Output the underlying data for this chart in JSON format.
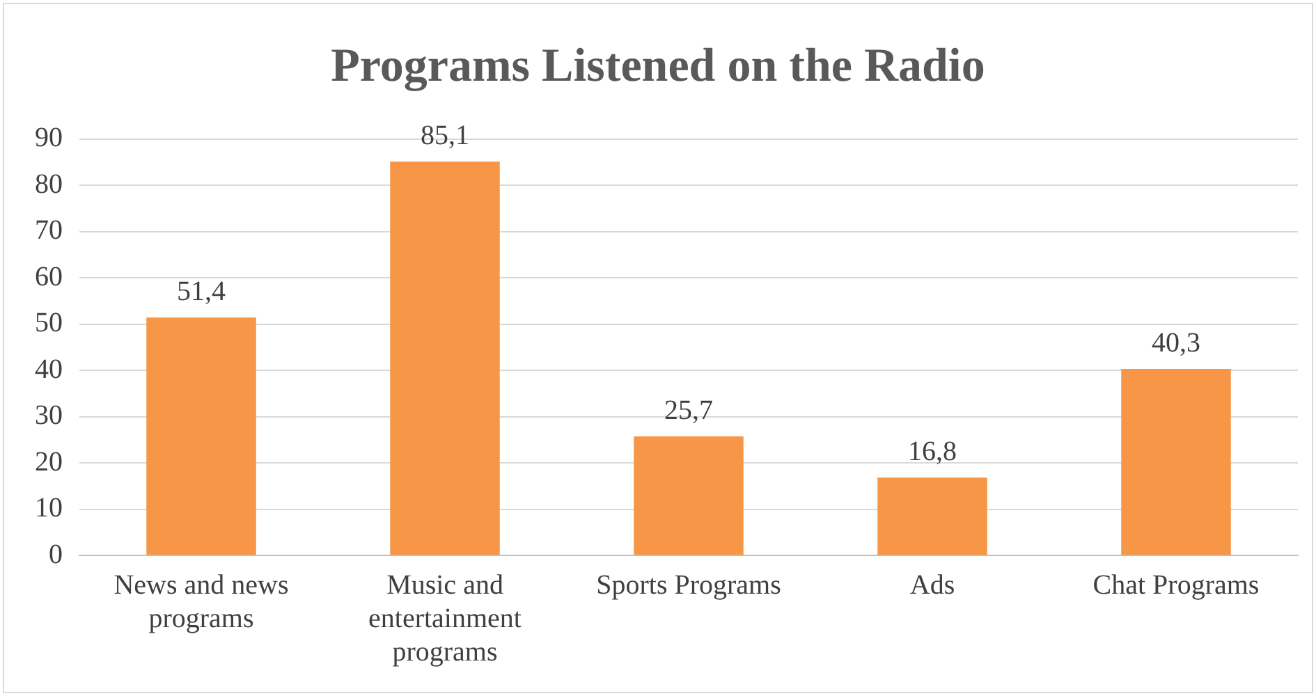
{
  "chart_data": {
    "type": "bar",
    "title": "Programs Listened on the Radio",
    "categories": [
      "News and news programs",
      "Music and entertainment programs",
      "Sports Programs",
      "Ads",
      "Chat Programs"
    ],
    "values": [
      51.4,
      85.1,
      25.7,
      16.8,
      40.3
    ],
    "value_labels": [
      "51,4",
      "85,1",
      "25,7",
      "16,8",
      "40,3"
    ],
    "color": "#f79646",
    "ylim": [
      0,
      90
    ],
    "yticks": [
      0,
      10,
      20,
      30,
      40,
      50,
      60,
      70,
      80,
      90
    ],
    "grid": "y",
    "legend": false
  }
}
